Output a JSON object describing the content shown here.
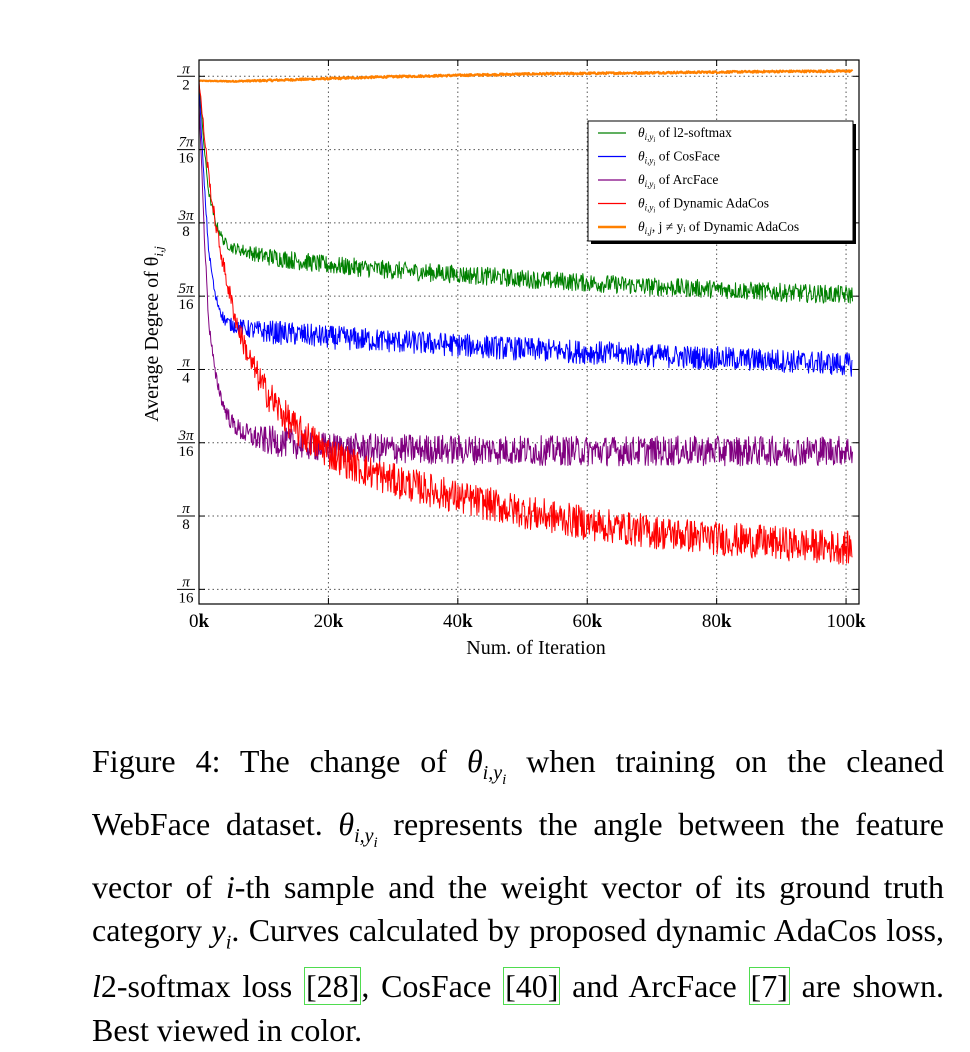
{
  "chart_data": {
    "type": "line",
    "title": "",
    "xlabel": "Num. of Iteration",
    "ylabel": "Average Degree of θ",
    "ylabel_sub": "i,j",
    "xlim": [
      0,
      102000
    ],
    "ylim_degrees": [
      9,
      92.5
    ],
    "grid": true,
    "x_ticks": [
      {
        "value": 0,
        "num": "0",
        "suffix": "k"
      },
      {
        "value": 20000,
        "num": "20",
        "suffix": "k"
      },
      {
        "value": 40000,
        "num": "40",
        "suffix": "k"
      },
      {
        "value": 60000,
        "num": "60",
        "suffix": "k"
      },
      {
        "value": 80000,
        "num": "80",
        "suffix": "k"
      },
      {
        "value": 100000,
        "num": "100",
        "suffix": "k"
      }
    ],
    "y_ticks": [
      {
        "value": 90,
        "num": "π",
        "den": "2"
      },
      {
        "value": 78.75,
        "num": "7π",
        "den": "16"
      },
      {
        "value": 67.5,
        "num": "3π",
        "den": "8"
      },
      {
        "value": 56.25,
        "num": "5π",
        "den": "16"
      },
      {
        "value": 45,
        "num": "π",
        "den": "4"
      },
      {
        "value": 33.75,
        "num": "3π",
        "den": "16"
      },
      {
        "value": 22.5,
        "num": "π",
        "den": "8"
      },
      {
        "value": 11.25,
        "num": "π",
        "den": "16"
      }
    ],
    "legend_position": "top-right",
    "series": [
      {
        "name": "of l2-softmax",
        "color": "#008000",
        "noise_degrees": 1.4,
        "x": [
          0,
          700,
          1500,
          2500,
          3800,
          5000,
          10000,
          20000,
          30000,
          40000,
          50000,
          60000,
          70000,
          80000,
          90000,
          101000
        ],
        "y": [
          89,
          80,
          72,
          67.5,
          64.5,
          63.5,
          62,
          60.6,
          59.8,
          59.2,
          58.5,
          57.9,
          57.3,
          56.9,
          56.4,
          56
        ]
      },
      {
        "name": "of CosFace",
        "color": "#0000ff",
        "noise_degrees": 1.8,
        "x": [
          0,
          700,
          1500,
          2500,
          3800,
          5000,
          8000,
          10000,
          20000,
          30000,
          40000,
          50000,
          60000,
          70000,
          80000,
          90000,
          101000
        ],
        "y": [
          88,
          75,
          63,
          56,
          52.5,
          51.5,
          50.7,
          50.3,
          49.4,
          48.8,
          48.2,
          47.6,
          47.1,
          46.6,
          46.2,
          45.8,
          45.2
        ]
      },
      {
        "name": "of ArcFace",
        "color": "#800080",
        "noise_degrees": 2.3,
        "x": [
          0,
          800,
          1500,
          2500,
          3800,
          5000,
          6500,
          8000,
          10000,
          20000,
          30000,
          40000,
          50000,
          60000,
          70000,
          80000,
          90000,
          101000
        ],
        "y": [
          86,
          66,
          52,
          44,
          39,
          36.5,
          35,
          34.2,
          33.5,
          32.3,
          32.1,
          32,
          31.9,
          31.8,
          31.8,
          31.8,
          31.8,
          31.9
        ]
      },
      {
        "name": "of Dynamic AdaCos",
        "color": "#ff0000",
        "noise_degrees": 2.6,
        "x": [
          0,
          1000,
          2000,
          3000,
          4000,
          5000,
          6000,
          8000,
          10000,
          12000,
          15000,
          20000,
          25000,
          30000,
          40000,
          50000,
          60000,
          70000,
          80000,
          90000,
          101000
        ],
        "y": [
          89,
          79,
          70.5,
          64.5,
          59.5,
          55,
          51,
          45.5,
          41.5,
          38.5,
          35,
          31.5,
          29,
          27.2,
          24.6,
          22.4,
          20.6,
          19.3,
          18.3,
          17.5,
          16.8
        ]
      },
      {
        "name": "of Dynamic AdaCos",
        "color": "#ff8000",
        "noise_degrees": 0.15,
        "x": [
          0,
          5000,
          10000,
          20000,
          30000,
          40000,
          50000,
          60000,
          70000,
          80000,
          90000,
          101000
        ],
        "y": [
          89.3,
          89.2,
          89.3,
          89.6,
          89.9,
          90.1,
          90.3,
          90.4,
          90.5,
          90.6,
          90.7,
          90.75
        ]
      }
    ],
    "legend_entries": [
      {
        "sym": "θ",
        "sub": "i,y",
        "subsub": "i",
        "extra": "",
        "italic_l": false,
        "text": " of l2-softmax"
      },
      {
        "sym": "θ",
        "sub": "i,y",
        "subsub": "i",
        "extra": "",
        "italic_l": false,
        "text": " of CosFace"
      },
      {
        "sym": "θ",
        "sub": "i,y",
        "subsub": "i",
        "extra": "",
        "italic_l": false,
        "text": " of ArcFace"
      },
      {
        "sym": "θ",
        "sub": "i,y",
        "subsub": "i",
        "extra": "",
        "italic_l": false,
        "text": " of Dynamic AdaCos"
      },
      {
        "sym": "θ",
        "sub": "i,j",
        "subsub": "",
        "extra": ", j ≠ yᵢ",
        "italic_l": false,
        "text": " of Dynamic AdaCos"
      }
    ]
  },
  "caption": {
    "figure_label": "Figure 4:",
    "p1": " The change of ",
    "theta": "θ",
    "sub": "i,y",
    "subsub": "i",
    "p2": " when training on the cleaned WebFace dataset. ",
    "p3": " represents the angle between the feature vector of ",
    "i_var": "i",
    "p4": "-th sample and the weight vector of its ground truth category ",
    "y_var": "y",
    "y_sub": "i",
    "p5": ". Curves calculated by proposed dynamic AdaCos loss, ",
    "l_var": "l",
    "p6": "2-softmax loss ",
    "ref1": "[28]",
    "p7": ", CosFace ",
    "ref2": "[40]",
    "p8": " and ArcFace ",
    "ref3": "[7]",
    "p9": " are shown. Best viewed in color."
  }
}
